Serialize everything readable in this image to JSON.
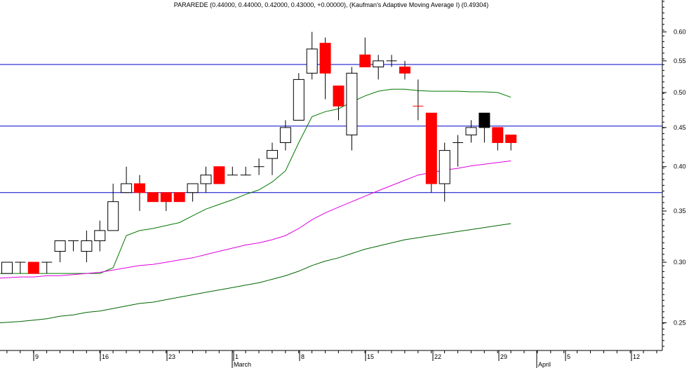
{
  "chart_data": {
    "type": "candlestick",
    "title": "PARAREDE (0.44000, 0.44000, 0.42000, 0.43000, +0.00000), (Kaufman's Adaptive Moving Average I) (0.49304)",
    "y_scale": "log",
    "ylim": [
      0.23,
      0.64
    ],
    "y_ticks": [
      0.6,
      0.55,
      0.5,
      0.45,
      0.4,
      0.35,
      0.3,
      0.25
    ],
    "x_day_labels": [
      "9",
      "16",
      "23",
      "1",
      "8",
      "15",
      "22",
      "29",
      "5",
      "12"
    ],
    "x_month_labels": [
      "March",
      "April"
    ],
    "horizontal_lines": [
      0.544,
      0.452,
      0.37
    ],
    "colors": {
      "up": "#ffffff",
      "down": "#ff0000",
      "down_black": "#000000",
      "hline": "#0000cc",
      "kama": "#007700",
      "ma_mid": "#e000e0",
      "ma_long": "#006600",
      "axis": "#000000"
    },
    "candles": [
      {
        "o": 0.29,
        "h": 0.3,
        "l": 0.29,
        "c": 0.3
      },
      {
        "o": 0.3,
        "h": 0.3,
        "l": 0.29,
        "c": 0.3
      },
      {
        "o": 0.3,
        "h": 0.3,
        "l": 0.29,
        "c": 0.29
      },
      {
        "o": 0.3,
        "h": 0.3,
        "l": 0.29,
        "c": 0.3
      },
      {
        "o": 0.31,
        "h": 0.32,
        "l": 0.3,
        "c": 0.32
      },
      {
        "o": 0.32,
        "h": 0.32,
        "l": 0.31,
        "c": 0.32
      },
      {
        "o": 0.31,
        "h": 0.33,
        "l": 0.3,
        "c": 0.32
      },
      {
        "o": 0.32,
        "h": 0.34,
        "l": 0.31,
        "c": 0.33
      },
      {
        "o": 0.33,
        "h": 0.38,
        "l": 0.33,
        "c": 0.36
      },
      {
        "o": 0.37,
        "h": 0.4,
        "l": 0.37,
        "c": 0.38
      },
      {
        "o": 0.38,
        "h": 0.39,
        "l": 0.35,
        "c": 0.37
      },
      {
        "o": 0.37,
        "h": 0.37,
        "l": 0.36,
        "c": 0.36
      },
      {
        "o": 0.37,
        "h": 0.37,
        "l": 0.35,
        "c": 0.36
      },
      {
        "o": 0.37,
        "h": 0.37,
        "l": 0.36,
        "c": 0.36
      },
      {
        "o": 0.37,
        "h": 0.38,
        "l": 0.36,
        "c": 0.38
      },
      {
        "o": 0.38,
        "h": 0.4,
        "l": 0.37,
        "c": 0.39
      },
      {
        "o": 0.4,
        "h": 0.4,
        "l": 0.38,
        "c": 0.38
      },
      {
        "o": 0.39,
        "h": 0.4,
        "l": 0.39,
        "c": 0.39
      },
      {
        "o": 0.39,
        "h": 0.4,
        "l": 0.39,
        "c": 0.39
      },
      {
        "o": 0.4,
        "h": 0.41,
        "l": 0.39,
        "c": 0.4
      },
      {
        "o": 0.41,
        "h": 0.43,
        "l": 0.39,
        "c": 0.42
      },
      {
        "o": 0.43,
        "h": 0.46,
        "l": 0.42,
        "c": 0.45
      },
      {
        "o": 0.46,
        "h": 0.53,
        "l": 0.46,
        "c": 0.52
      },
      {
        "o": 0.53,
        "h": 0.6,
        "l": 0.52,
        "c": 0.57
      },
      {
        "o": 0.58,
        "h": 0.59,
        "l": 0.49,
        "c": 0.53
      },
      {
        "o": 0.51,
        "h": 0.51,
        "l": 0.46,
        "c": 0.48
      },
      {
        "o": 0.44,
        "h": 0.54,
        "l": 0.42,
        "c": 0.53
      },
      {
        "o": 0.56,
        "h": 0.59,
        "l": 0.54,
        "c": 0.54
      },
      {
        "o": 0.54,
        "h": 0.56,
        "l": 0.52,
        "c": 0.55
      },
      {
        "o": 0.55,
        "h": 0.56,
        "l": 0.54,
        "c": 0.55
      },
      {
        "o": 0.54,
        "h": 0.55,
        "l": 0.52,
        "c": 0.53
      },
      {
        "o": 0.48,
        "h": 0.52,
        "l": 0.46,
        "c": 0.48
      },
      {
        "o": 0.47,
        "h": 0.47,
        "l": 0.37,
        "c": 0.38
      },
      {
        "o": 0.38,
        "h": 0.43,
        "l": 0.36,
        "c": 0.42
      },
      {
        "o": 0.43,
        "h": 0.44,
        "l": 0.4,
        "c": 0.43
      },
      {
        "o": 0.44,
        "h": 0.46,
        "l": 0.43,
        "c": 0.45
      },
      {
        "o": 0.47,
        "h": 0.47,
        "l": 0.43,
        "c": 0.45
      },
      {
        "o": 0.45,
        "h": 0.45,
        "l": 0.42,
        "c": 0.43
      },
      {
        "o": 0.44,
        "h": 0.44,
        "l": 0.42,
        "c": 0.43
      }
    ],
    "series": [
      {
        "kind": "kama",
        "values": [
          0.29,
          0.29,
          0.29,
          0.29,
          0.29,
          0.29,
          0.29,
          0.29,
          0.295,
          0.325,
          0.33,
          0.332,
          0.335,
          0.338,
          0.345,
          0.352,
          0.357,
          0.362,
          0.368,
          0.373,
          0.382,
          0.395,
          0.43,
          0.465,
          0.472,
          0.476,
          0.486,
          0.495,
          0.502,
          0.505,
          0.505,
          0.503,
          0.502,
          0.502,
          0.502,
          0.501,
          0.501,
          0.5,
          0.493
        ]
      },
      {
        "kind": "ma_mid",
        "values": [
          0.286,
          0.287,
          0.287,
          0.288,
          0.288,
          0.289,
          0.29,
          0.291,
          0.293,
          0.295,
          0.297,
          0.298,
          0.3,
          0.302,
          0.304,
          0.307,
          0.31,
          0.313,
          0.316,
          0.318,
          0.321,
          0.325,
          0.332,
          0.341,
          0.348,
          0.354,
          0.36,
          0.366,
          0.372,
          0.378,
          0.384,
          0.39,
          0.393,
          0.396,
          0.398,
          0.401,
          0.403,
          0.405,
          0.407
        ]
      },
      {
        "kind": "ma_long",
        "values": [
          0.25,
          0.251,
          0.252,
          0.253,
          0.255,
          0.256,
          0.258,
          0.259,
          0.261,
          0.263,
          0.265,
          0.266,
          0.268,
          0.27,
          0.272,
          0.274,
          0.276,
          0.278,
          0.28,
          0.282,
          0.285,
          0.288,
          0.292,
          0.297,
          0.301,
          0.304,
          0.308,
          0.312,
          0.315,
          0.318,
          0.321,
          0.323,
          0.325,
          0.327,
          0.329,
          0.331,
          0.333,
          0.335,
          0.337
        ]
      }
    ]
  }
}
